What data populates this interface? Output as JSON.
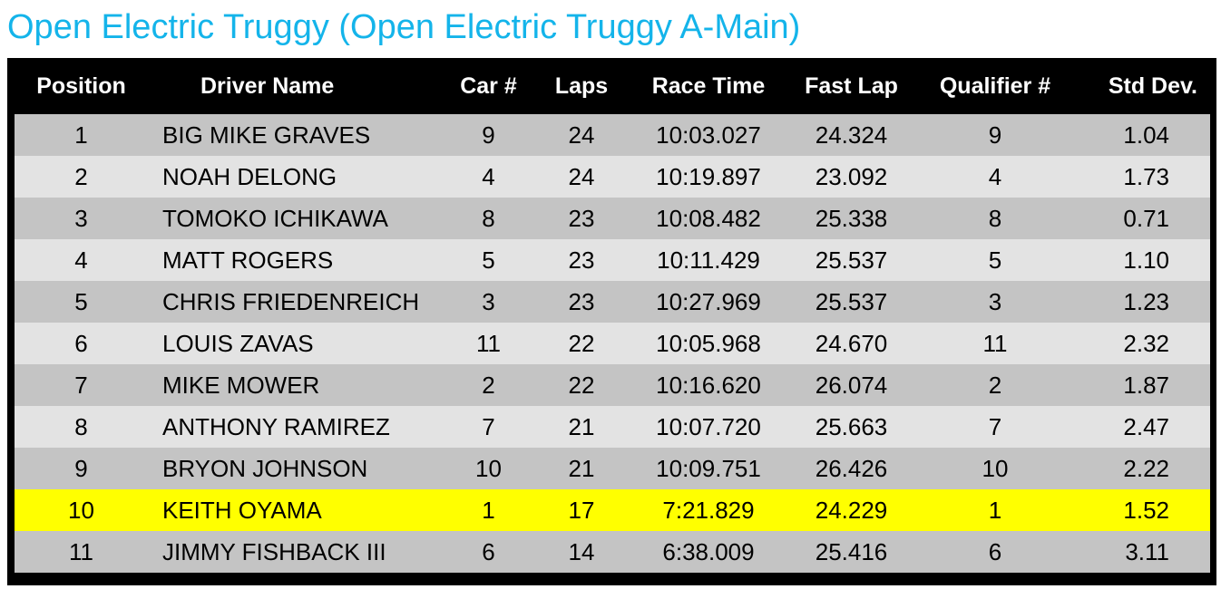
{
  "title": "Open Electric Truggy (Open Electric Truggy A-Main)",
  "colors": {
    "title": "#14b4ea",
    "header_bg": "#000000",
    "row_dark": "#c4c4c4",
    "row_light": "#e3e3e3",
    "highlight": "#ffff00"
  },
  "columns": [
    "Position",
    "Driver Name",
    "Car #",
    "Laps",
    "Race Time",
    "Fast Lap",
    "Qualifier #",
    "Std Dev."
  ],
  "rows": [
    {
      "position": "1",
      "driver": "BIG MIKE GRAVES",
      "car": "9",
      "laps": "24",
      "race_time": "10:03.027",
      "fast_lap": "24.324",
      "qualifier": "9",
      "std_dev": "1.04"
    },
    {
      "position": "2",
      "driver": "NOAH DELONG",
      "car": "4",
      "laps": "24",
      "race_time": "10:19.897",
      "fast_lap": "23.092",
      "qualifier": "4",
      "std_dev": "1.73"
    },
    {
      "position": "3",
      "driver": "TOMOKO ICHIKAWA",
      "car": "8",
      "laps": "23",
      "race_time": "10:08.482",
      "fast_lap": "25.338",
      "qualifier": "8",
      "std_dev": "0.71"
    },
    {
      "position": "4",
      "driver": "MATT ROGERS",
      "car": "5",
      "laps": "23",
      "race_time": "10:11.429",
      "fast_lap": "25.537",
      "qualifier": "5",
      "std_dev": "1.10"
    },
    {
      "position": "5",
      "driver": "CHRIS FRIEDENREICH",
      "car": "3",
      "laps": "23",
      "race_time": "10:27.969",
      "fast_lap": "25.537",
      "qualifier": "3",
      "std_dev": "1.23"
    },
    {
      "position": "6",
      "driver": "LOUIS ZAVAS",
      "car": "11",
      "laps": "22",
      "race_time": "10:05.968",
      "fast_lap": "24.670",
      "qualifier": "11",
      "std_dev": "2.32"
    },
    {
      "position": "7",
      "driver": "MIKE MOWER",
      "car": "2",
      "laps": "22",
      "race_time": "10:16.620",
      "fast_lap": "26.074",
      "qualifier": "2",
      "std_dev": "1.87"
    },
    {
      "position": "8",
      "driver": "ANTHONY RAMIREZ",
      "car": "7",
      "laps": "21",
      "race_time": "10:07.720",
      "fast_lap": "25.663",
      "qualifier": "7",
      "std_dev": "2.47"
    },
    {
      "position": "9",
      "driver": "BRYON JOHNSON",
      "car": "10",
      "laps": "21",
      "race_time": "10:09.751",
      "fast_lap": "26.426",
      "qualifier": "10",
      "std_dev": "2.22"
    },
    {
      "position": "10",
      "driver": "KEITH OYAMA",
      "car": "1",
      "laps": "17",
      "race_time": "7:21.829",
      "fast_lap": "24.229",
      "qualifier": "1",
      "std_dev": "1.52",
      "highlighted": true
    },
    {
      "position": "11",
      "driver": "JIMMY FISHBACK III",
      "car": "6",
      "laps": "14",
      "race_time": "6:38.009",
      "fast_lap": "25.416",
      "qualifier": "6",
      "std_dev": "3.11"
    }
  ]
}
